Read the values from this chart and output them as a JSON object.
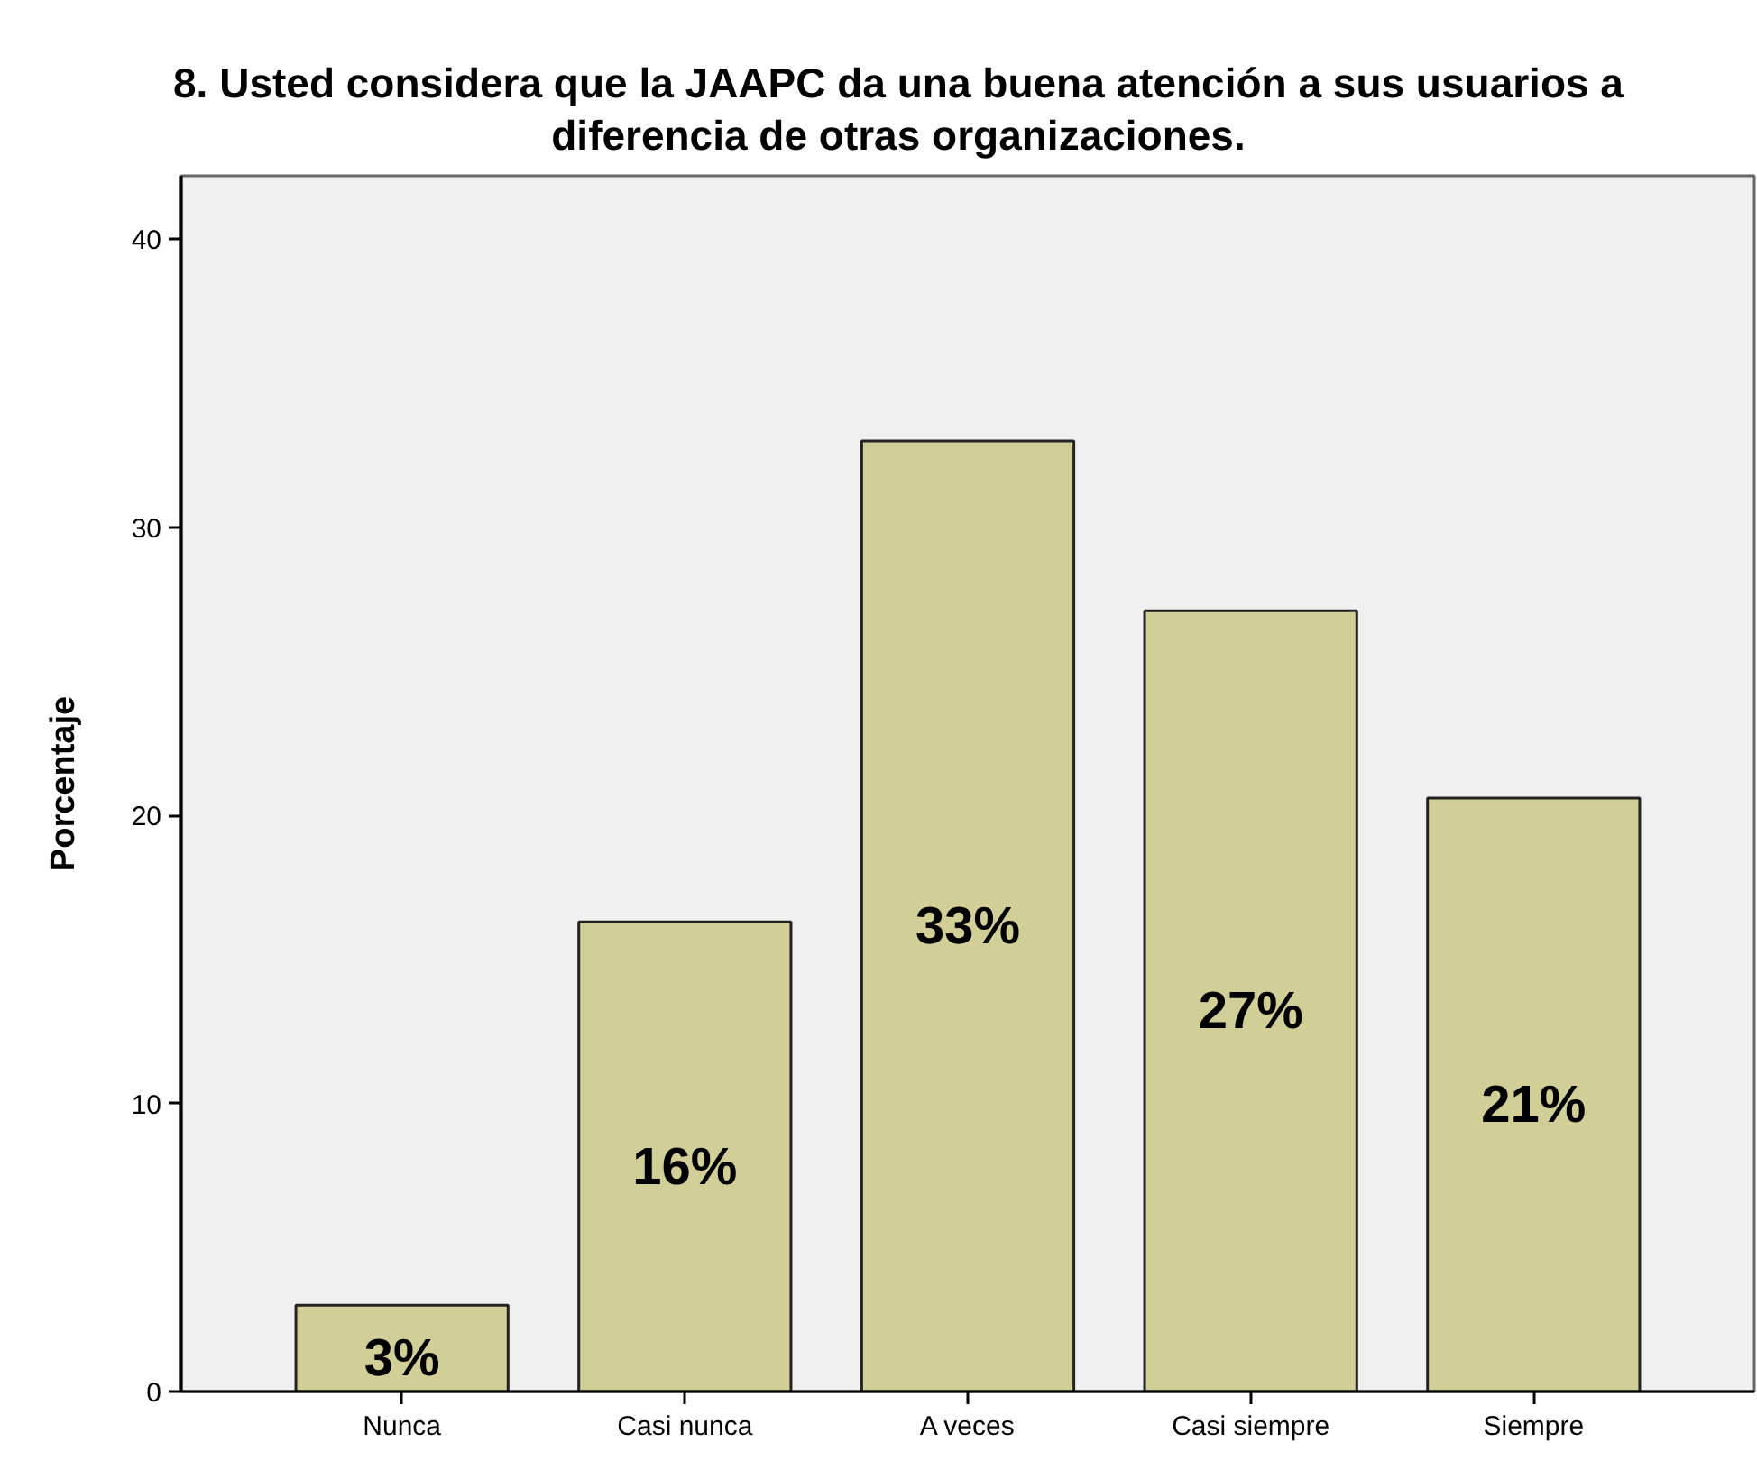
{
  "chart_data": {
    "type": "bar",
    "title": "8. Usted considera que la JAAPC da una buena atención a sus usuarios a diferencia de otras organizaciones.",
    "ylabel": "Porcentaje",
    "categories": [
      "Nunca",
      "Casi nunca",
      "A veces",
      "Casi siempre",
      "Siempre"
    ],
    "values": [
      3.0,
      16.3,
      33.0,
      27.1,
      20.6
    ],
    "value_labels": [
      "3%",
      "16%",
      "33%",
      "27%",
      "21%"
    ],
    "color": "#d2ce98",
    "ylim": [
      0,
      42.2
    ],
    "yticks": [
      0,
      10,
      20,
      30,
      40
    ],
    "grid": false
  }
}
